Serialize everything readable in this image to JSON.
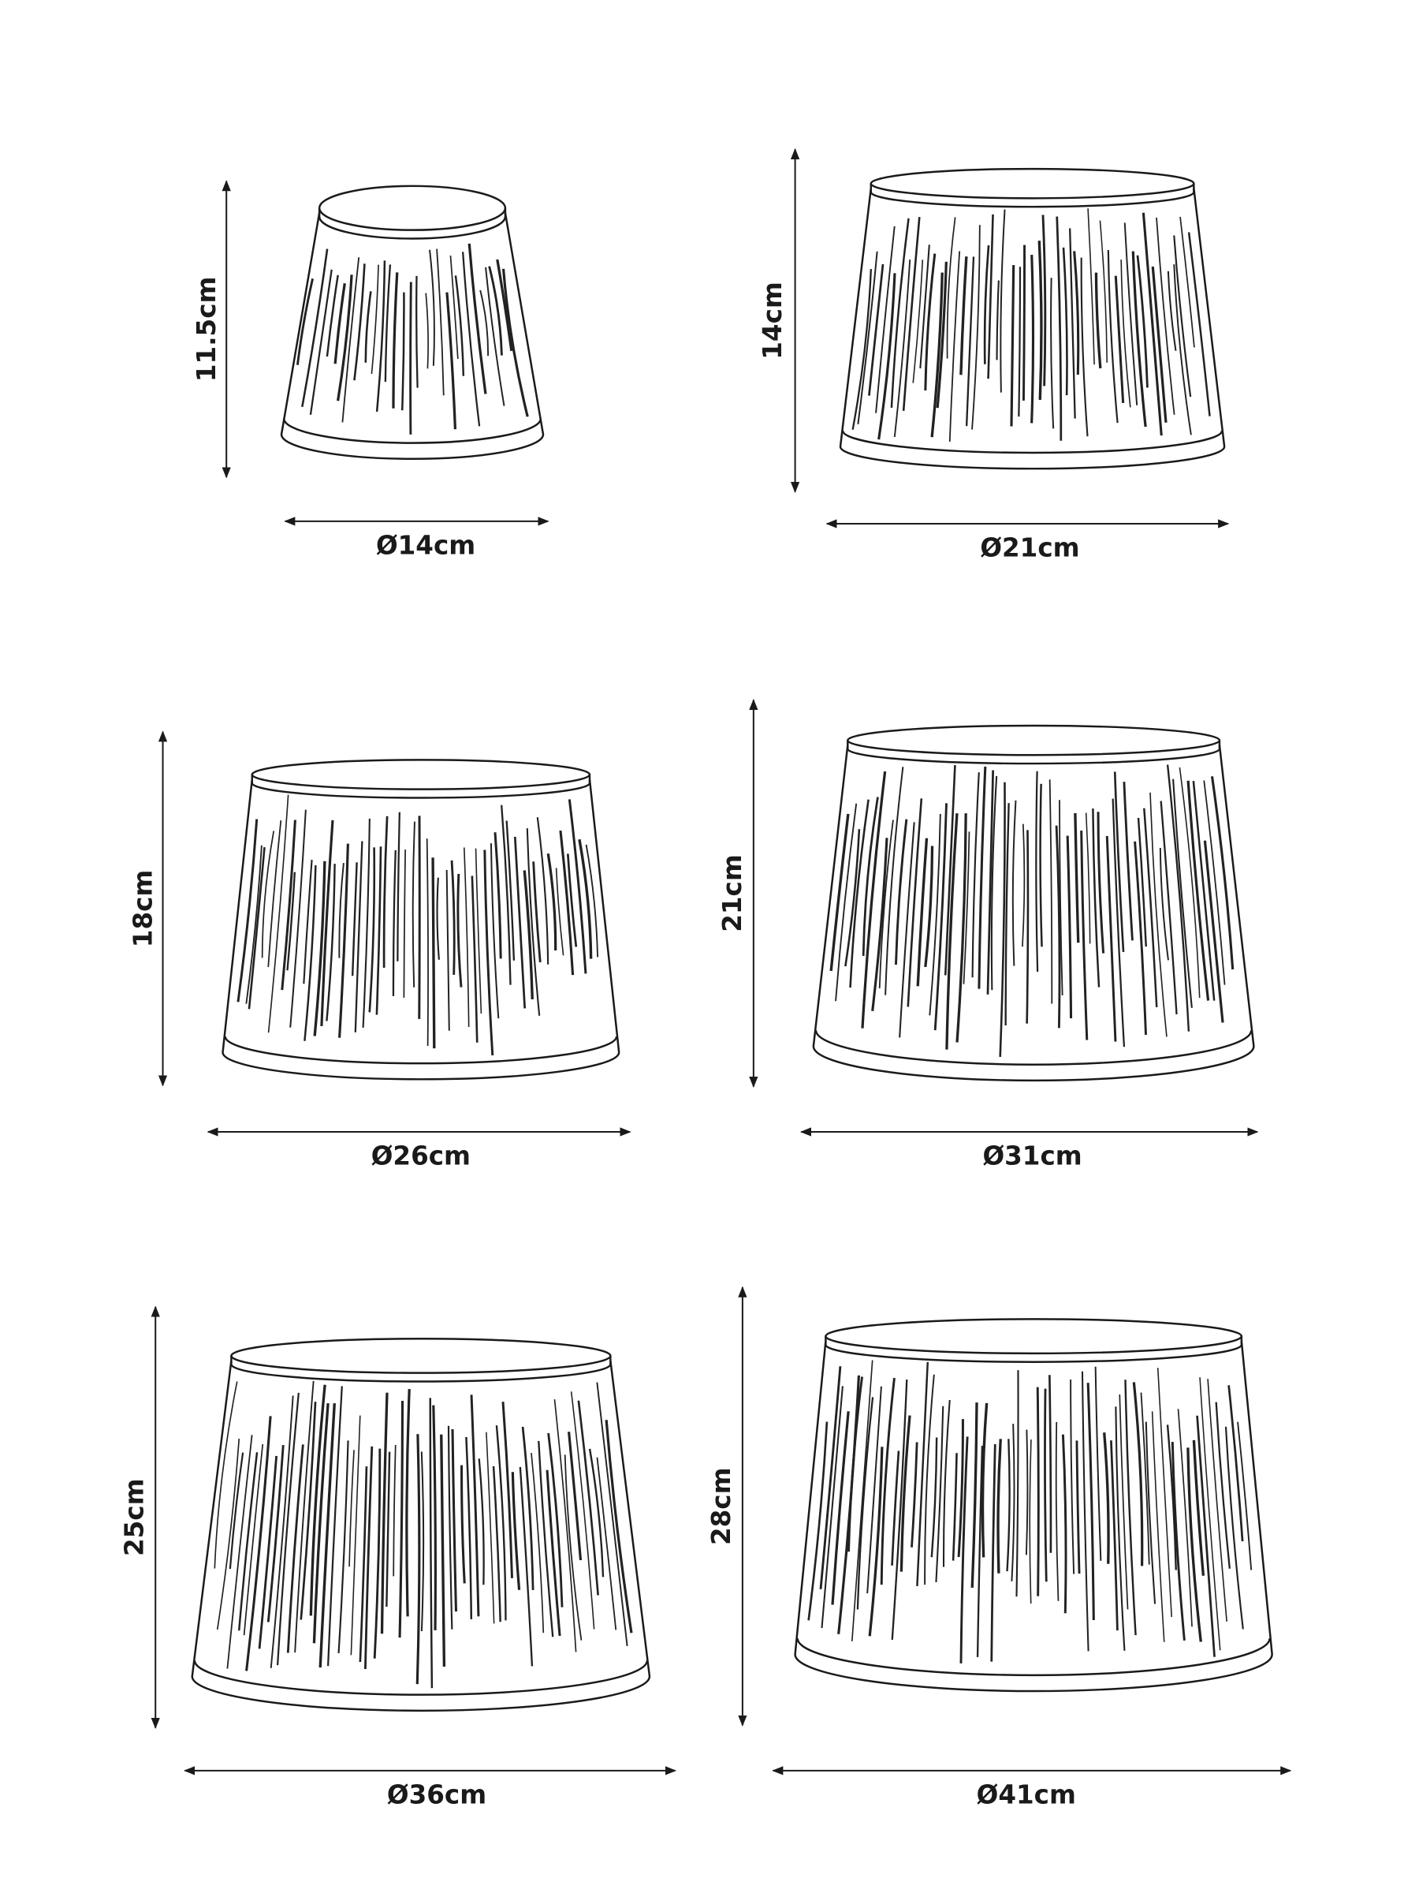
{
  "shades": [
    {
      "height": "11.5cm",
      "diameter": "Ø14cm"
    },
    {
      "height": "14cm",
      "diameter": "Ø21cm"
    },
    {
      "height": "18cm",
      "diameter": "Ø26cm"
    },
    {
      "height": "21cm",
      "diameter": "Ø31cm"
    },
    {
      "height": "25cm",
      "diameter": "Ø36cm"
    },
    {
      "height": "28cm",
      "diameter": "Ø41cm"
    }
  ]
}
